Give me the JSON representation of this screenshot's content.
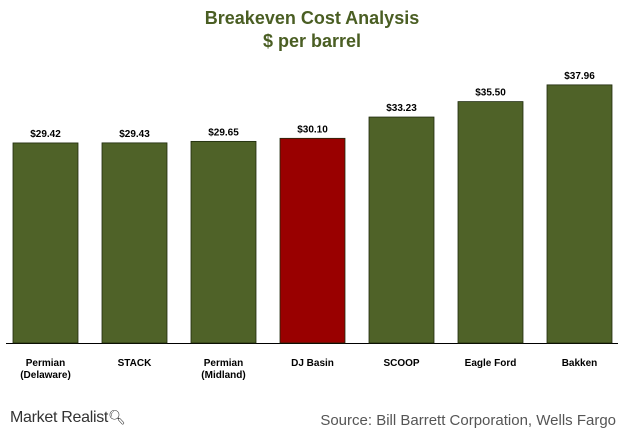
{
  "chart_data": {
    "type": "bar",
    "title": "Breakeven Cost Analysis",
    "subtitle": "$ per barrel",
    "categories": [
      "Permian\n(Delaware)",
      "STACK",
      "Permian\n(Midland)",
      "DJ Basin",
      "SCOOP",
      "Eagle Ford",
      "Bakken"
    ],
    "values": [
      29.42,
      29.43,
      29.65,
      30.1,
      33.23,
      35.5,
      37.96
    ],
    "value_labels": [
      "$29.42",
      "$29.43",
      "$29.65",
      "$30.10",
      "$33.23",
      "$35.50",
      "$37.96"
    ],
    "highlight_index": 3,
    "colors": {
      "bar": "#4f6228",
      "highlight": "#990000",
      "title": "#4a5e23"
    },
    "ylim": [
      0,
      40
    ],
    "grid": false,
    "legend": "none"
  },
  "footer": {
    "brand": "Market Realist",
    "brand_icon": "magnifier-icon",
    "source": "Source: Bill Barrett Corporation, Wells Fargo"
  }
}
